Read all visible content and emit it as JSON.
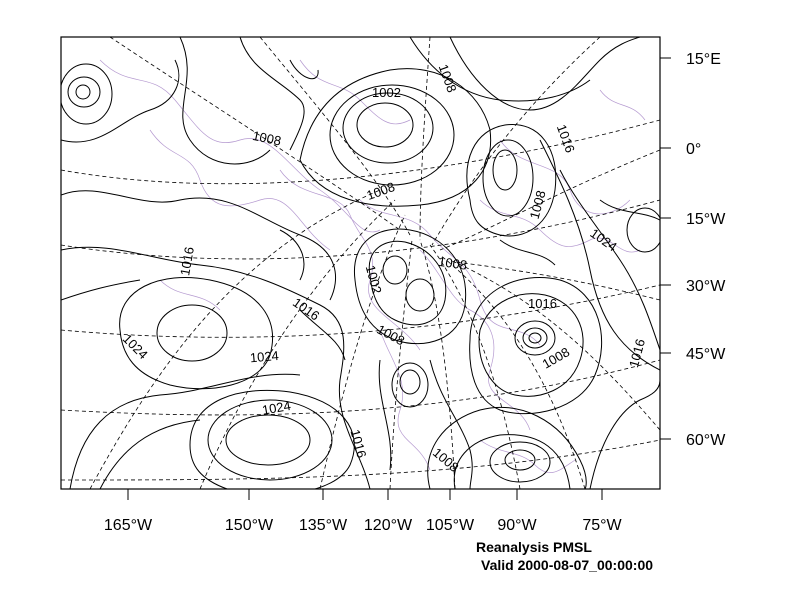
{
  "figure": {
    "title": "Reanalysis PMSL",
    "subtitle": "Valid 2000-08-07_00:00:00"
  },
  "colors": {
    "contour": "#000000",
    "graticule": "#000000",
    "coastline": "#b59ad0",
    "background": "#ffffff"
  },
  "lon_labels": [
    "165°W",
    "150°W",
    "135°W",
    "120°W",
    "105°W",
    "90°W",
    "75°W"
  ],
  "lat_labels": [
    "15°E",
    "0°",
    "15°W",
    "30°W",
    "45°W",
    "60°W"
  ],
  "contour_labels": [
    {
      "text": "1002"
    },
    {
      "text": "1008"
    },
    {
      "text": "1008"
    },
    {
      "text": "1016"
    },
    {
      "text": "1008"
    },
    {
      "text": "1008"
    },
    {
      "text": "1024"
    },
    {
      "text": "1016"
    },
    {
      "text": "1008"
    },
    {
      "text": "1002"
    },
    {
      "text": "1016"
    },
    {
      "text": "1024"
    },
    {
      "text": "1016"
    },
    {
      "text": "1008"
    },
    {
      "text": "1008"
    },
    {
      "text": "1016"
    },
    {
      "text": "1024"
    },
    {
      "text": "1024"
    },
    {
      "text": "1016"
    },
    {
      "text": "1008"
    }
  ]
}
